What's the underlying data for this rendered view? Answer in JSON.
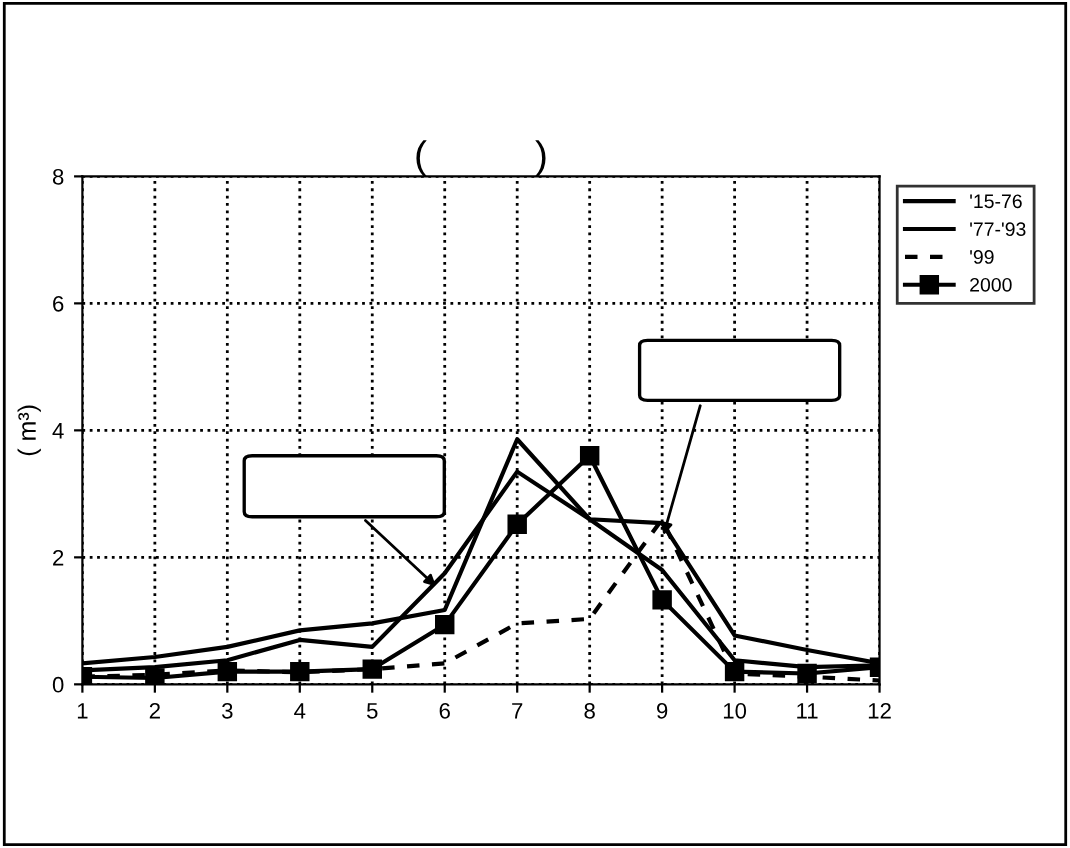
{
  "chart_data": {
    "type": "line",
    "title": "(          )",
    "ylabel": "( m³)",
    "categories": [
      "1",
      "2",
      "3",
      "4",
      "5",
      "6",
      "7",
      "8",
      "9",
      "10",
      "11",
      "12"
    ],
    "series": [
      {
        "name": "'15-76",
        "color": "#000000",
        "line_style": "solid",
        "marker": "none",
        "values": [
          0.33,
          0.43,
          0.59,
          0.85,
          0.96,
          1.17,
          3.86,
          2.6,
          2.54,
          0.77,
          0.54,
          0.33
        ]
      },
      {
        "name": "'77-'93",
        "color": "#000000",
        "line_style": "solid",
        "marker": "none",
        "values": [
          0.22,
          0.27,
          0.38,
          0.7,
          0.59,
          1.75,
          3.35,
          2.6,
          1.8,
          0.38,
          0.27,
          0.3
        ]
      },
      {
        "name": "'99",
        "color": "#000000",
        "line_style": "dashed",
        "marker": "none",
        "values": [
          0.12,
          0.15,
          0.22,
          0.19,
          0.24,
          0.33,
          0.96,
          1.03,
          2.6,
          0.17,
          0.12,
          0.06
        ]
      },
      {
        "name": "2000",
        "color": "#000000",
        "line_style": "solid",
        "marker": "square",
        "values": [
          0.12,
          0.1,
          0.2,
          0.2,
          0.24,
          0.94,
          2.52,
          3.6,
          1.33,
          0.2,
          0.17,
          0.27
        ]
      }
    ],
    "ylim": [
      0,
      8
    ],
    "yticks": [
      0,
      2,
      4,
      6,
      8
    ],
    "grid": true,
    "legend": "top right"
  }
}
